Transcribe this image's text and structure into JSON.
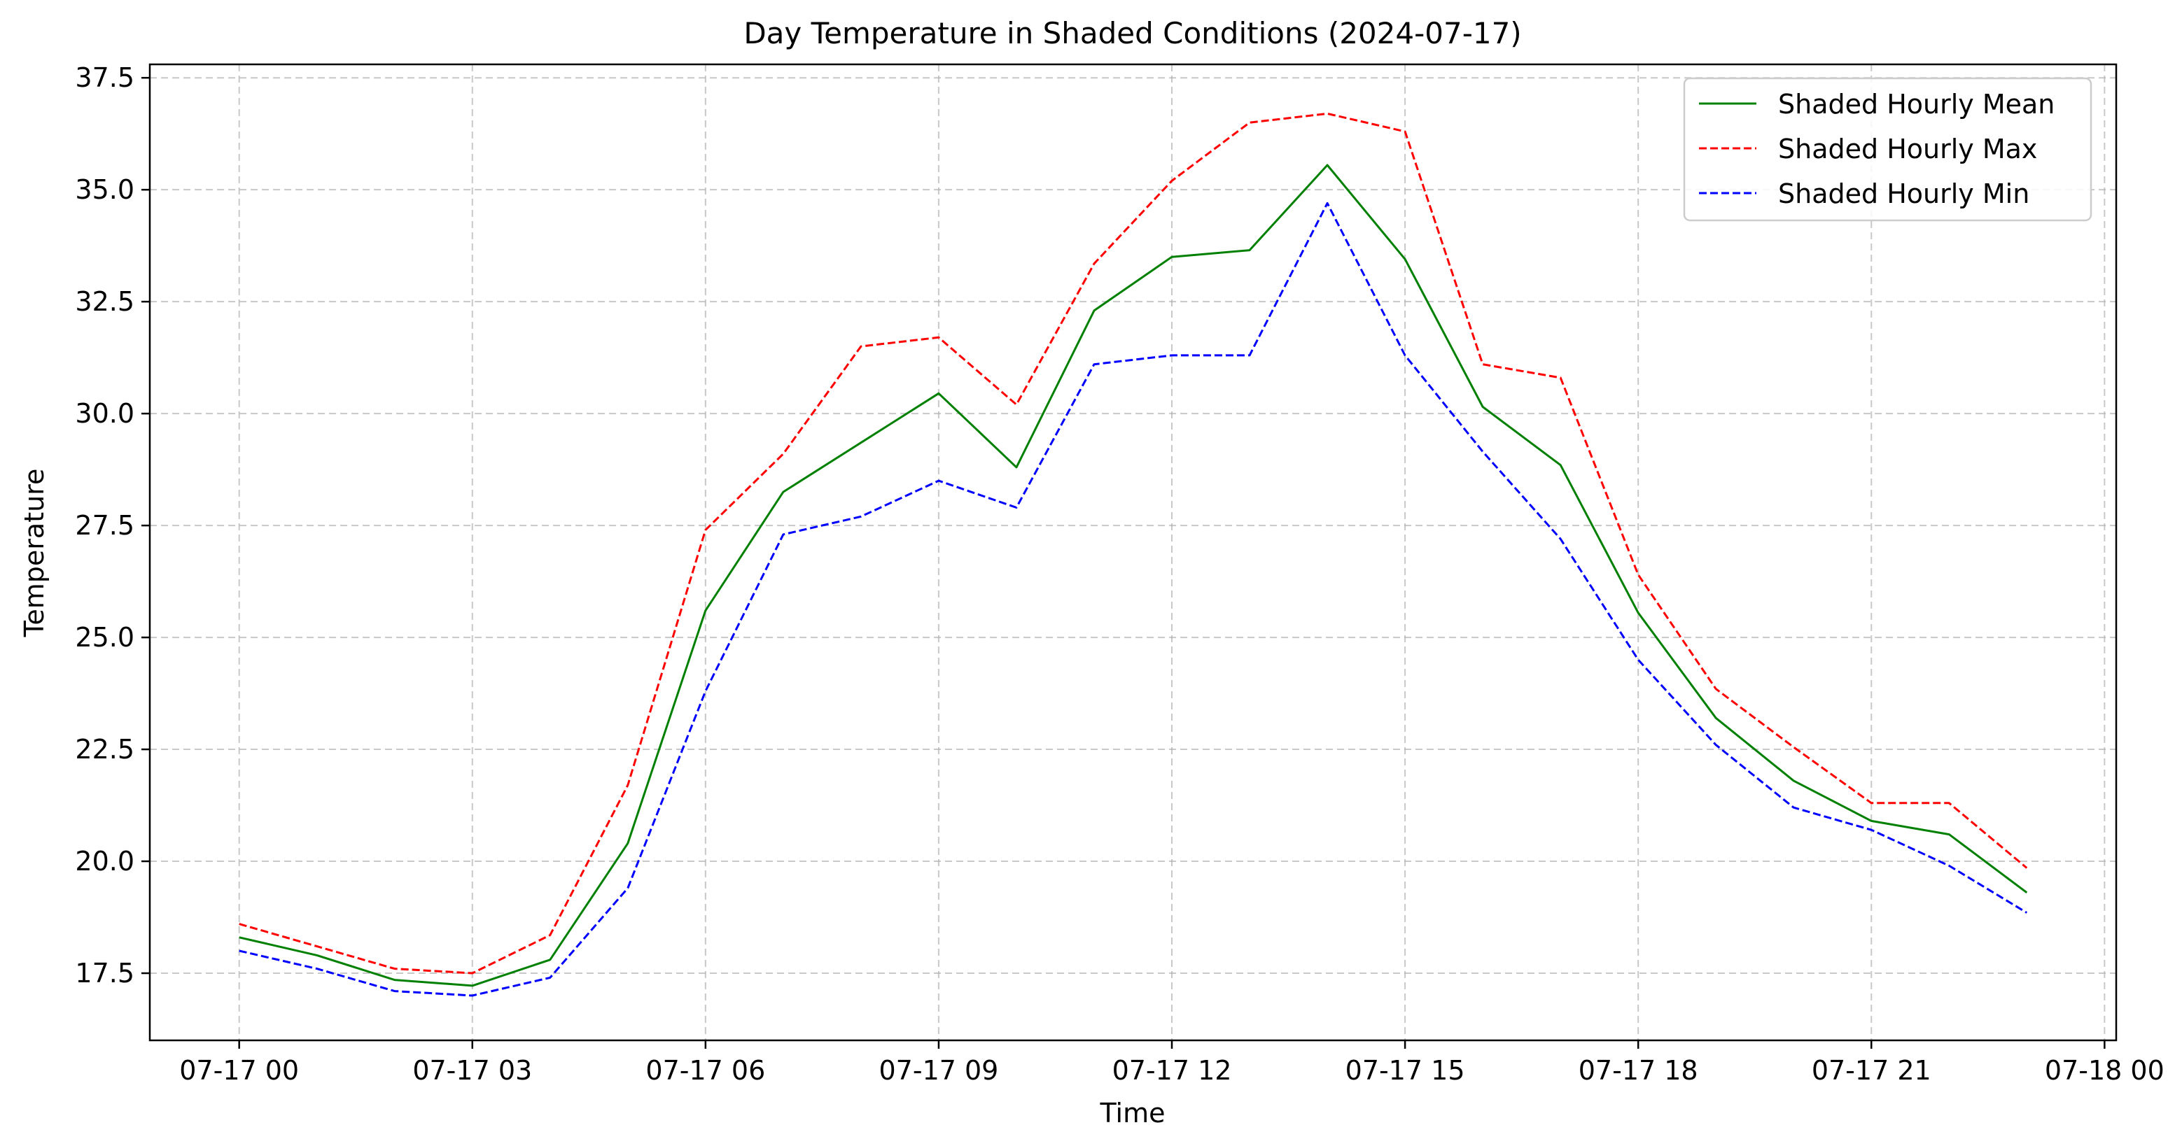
{
  "chart_data": {
    "type": "line",
    "title": "Day Temperature in Shaded Conditions (2024-07-17)",
    "xlabel": "Time",
    "ylabel": "Temperature",
    "x": [
      "07-17 00",
      "07-17 01",
      "07-17 02",
      "07-17 03",
      "07-17 04",
      "07-17 05",
      "07-17 06",
      "07-17 07",
      "07-17 08",
      "07-17 09",
      "07-17 10",
      "07-17 11",
      "07-17 12",
      "07-17 13",
      "07-17 14",
      "07-17 15",
      "07-17 16",
      "07-17 17",
      "07-17 18",
      "07-17 19",
      "07-17 20",
      "07-17 21",
      "07-17 22",
      "07-17 23"
    ],
    "x_hours": [
      0,
      1,
      2,
      3,
      4,
      5,
      6,
      7,
      8,
      9,
      10,
      11,
      12,
      13,
      14,
      15,
      16,
      17,
      18,
      19,
      20,
      21,
      22,
      23
    ],
    "xlim_hours": [
      -1.15,
      24.15
    ],
    "xticks_hours": [
      0,
      3,
      6,
      9,
      12,
      15,
      18,
      21,
      24
    ],
    "xtick_labels": [
      "07-17 00",
      "07-17 03",
      "07-17 06",
      "07-17 09",
      "07-17 12",
      "07-17 15",
      "07-17 18",
      "07-17 21",
      "07-18 00"
    ],
    "ylim": [
      16.0,
      37.8
    ],
    "yticks": [
      17.5,
      20.0,
      22.5,
      25.0,
      27.5,
      30.0,
      32.5,
      35.0,
      37.5
    ],
    "ytick_labels": [
      "17.5",
      "20.0",
      "22.5",
      "25.0",
      "27.5",
      "30.0",
      "32.5",
      "35.0",
      "37.5"
    ],
    "grid": true,
    "legend_position": "top-right",
    "series": [
      {
        "name": "Shaded Hourly Mean",
        "color": "#008000",
        "dash": "solid",
        "values": [
          18.3,
          17.9,
          17.35,
          17.22,
          17.8,
          20.4,
          25.6,
          28.25,
          29.35,
          30.45,
          28.8,
          32.3,
          33.5,
          33.65,
          35.55,
          33.45,
          30.15,
          28.85,
          25.55,
          23.2,
          21.8,
          20.9,
          20.6,
          19.3
        ]
      },
      {
        "name": "Shaded Hourly Max",
        "color": "#ff0000",
        "dash": "dashed",
        "values": [
          18.6,
          18.1,
          17.6,
          17.5,
          18.35,
          21.7,
          27.4,
          29.1,
          31.5,
          31.7,
          30.2,
          33.35,
          35.2,
          36.5,
          36.7,
          36.3,
          31.1,
          30.8,
          26.4,
          23.85,
          22.55,
          21.3,
          21.3,
          19.85
        ]
      },
      {
        "name": "Shaded Hourly Min",
        "color": "#0000ff",
        "dash": "dashed",
        "values": [
          18.0,
          17.6,
          17.1,
          17.0,
          17.4,
          19.4,
          23.8,
          27.3,
          27.7,
          28.5,
          27.9,
          31.1,
          31.3,
          31.3,
          34.7,
          31.3,
          29.15,
          27.2,
          24.5,
          22.6,
          21.2,
          20.7,
          19.9,
          18.85
        ]
      }
    ]
  }
}
